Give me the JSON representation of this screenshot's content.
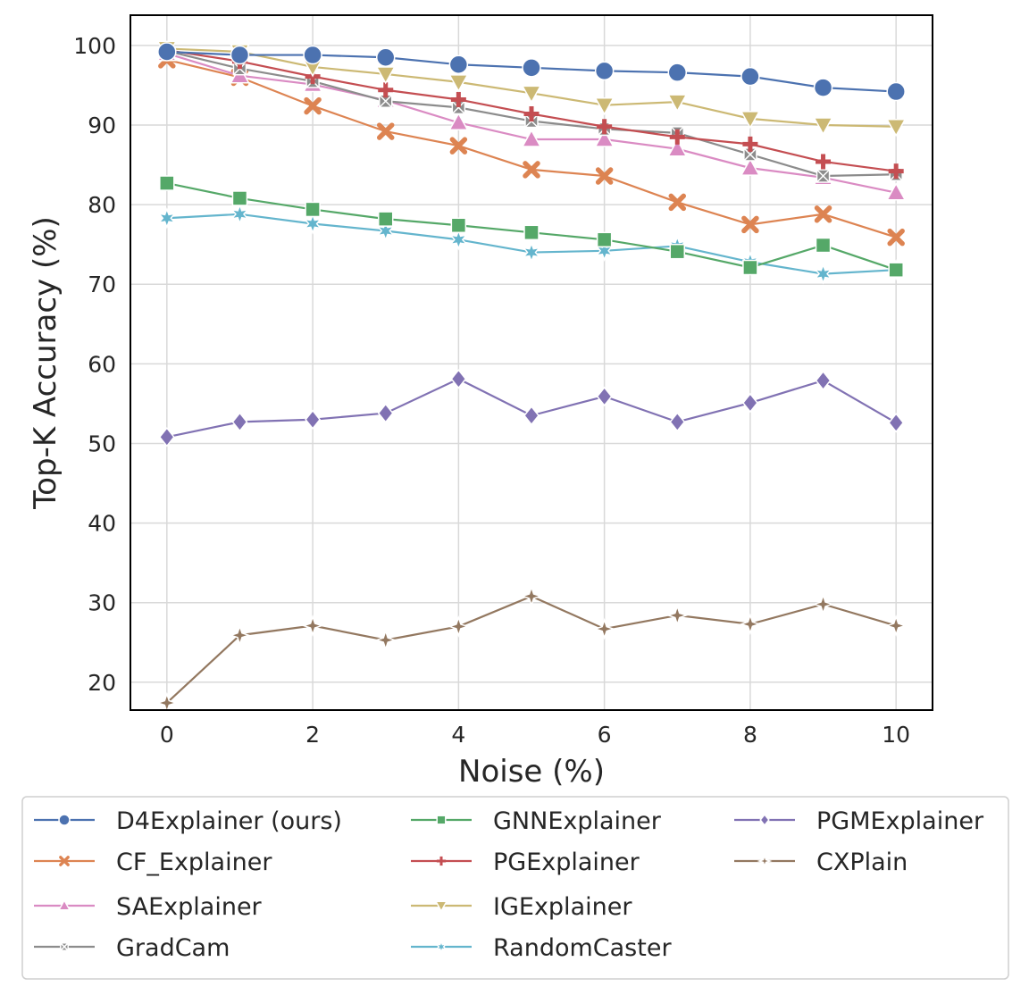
{
  "chart_data": {
    "type": "line",
    "title": "",
    "xlabel": "Noise (%)",
    "ylabel": "Top-K Accuracy (%)",
    "x": [
      0,
      1,
      2,
      3,
      4,
      5,
      6,
      7,
      8,
      9,
      10
    ],
    "xlim": [
      -0.5,
      10.5
    ],
    "ylim": [
      16.5,
      103.8
    ],
    "xticks": [
      0,
      2,
      4,
      6,
      8,
      10
    ],
    "yticks": [
      20,
      30,
      40,
      50,
      60,
      70,
      80,
      90,
      100
    ],
    "grid": true,
    "legend_position": "below",
    "series": [
      {
        "name": "D4Explainer (ours)",
        "color": "#4c72b0",
        "marker": "circle",
        "values": [
          99.2,
          98.8,
          98.8,
          98.5,
          97.6,
          97.2,
          96.8,
          96.6,
          96.1,
          94.7,
          94.2
        ]
      },
      {
        "name": "CF_Explainer",
        "color": "#dd8452",
        "marker": "x",
        "values": [
          98.2,
          96.0,
          92.4,
          89.2,
          87.4,
          84.4,
          83.6,
          80.3,
          77.5,
          78.8,
          75.9
        ]
      },
      {
        "name": "SAExplainer",
        "color": "#da8bc3",
        "marker": "triangle-up",
        "values": [
          99.0,
          96.2,
          95.1,
          93.1,
          90.3,
          88.2,
          88.2,
          87.0,
          84.6,
          83.4,
          81.5
        ]
      },
      {
        "name": "GradCam",
        "color": "#8c8c8c",
        "marker": "x-square",
        "values": [
          99.3,
          97.1,
          95.5,
          93.0,
          92.2,
          90.5,
          89.5,
          89.0,
          86.3,
          83.6,
          83.8
        ]
      },
      {
        "name": "GNNExplainer",
        "color": "#55a868",
        "marker": "square",
        "values": [
          82.7,
          80.8,
          79.4,
          78.2,
          77.4,
          76.5,
          75.6,
          74.1,
          72.1,
          74.9,
          71.8
        ]
      },
      {
        "name": "PGExplainer",
        "color": "#c44e52",
        "marker": "plus",
        "values": [
          99.4,
          98.0,
          96.1,
          94.4,
          93.2,
          91.4,
          89.8,
          88.5,
          87.6,
          85.4,
          84.2
        ]
      },
      {
        "name": "IGExplainer",
        "color": "#ccb974",
        "marker": "triangle-down",
        "values": [
          99.6,
          99.2,
          97.3,
          96.4,
          95.4,
          94.0,
          92.5,
          92.9,
          90.8,
          90.0,
          89.8
        ]
      },
      {
        "name": "RandomCaster",
        "color": "#64b5cd",
        "marker": "star",
        "values": [
          78.3,
          78.8,
          77.6,
          76.7,
          75.6,
          74.0,
          74.2,
          74.8,
          72.8,
          71.3,
          71.8
        ]
      },
      {
        "name": "PGMExplainer",
        "color": "#8172b3",
        "marker": "diamond",
        "values": [
          50.8,
          52.7,
          53.0,
          53.8,
          58.1,
          53.5,
          55.9,
          52.7,
          55.1,
          57.9,
          52.6
        ]
      },
      {
        "name": "CXPlain",
        "color": "#937860",
        "marker": "star4",
        "values": [
          17.4,
          25.9,
          27.1,
          25.3,
          27.0,
          30.8,
          26.7,
          28.4,
          27.3,
          29.8,
          27.1
        ]
      }
    ]
  }
}
